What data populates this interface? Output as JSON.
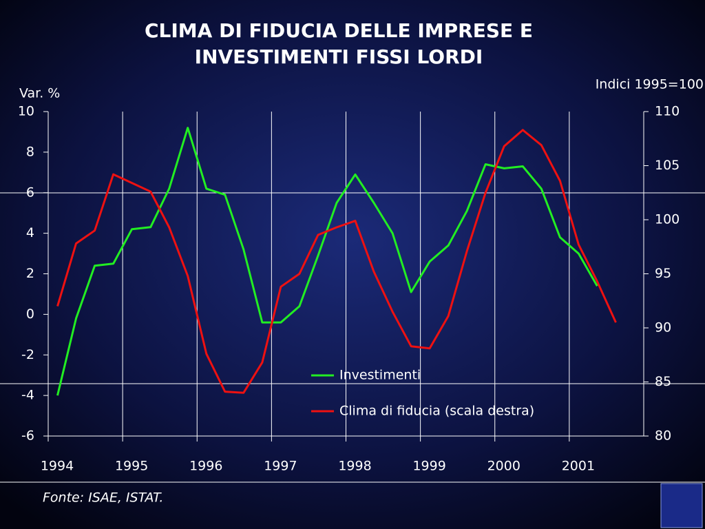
{
  "chart_data": {
    "type": "line",
    "title_lines": [
      "CLIMA DI FIDUCIA DELLE IMPRESE E",
      "INVESTIMENTI FISSI LORDI"
    ],
    "y_label": "Var. %",
    "y2_label": "Indici 1995=100",
    "source": "Fonte: ISAE, ISTAT.",
    "x": [
      1994.125,
      1994.375,
      1994.625,
      1994.875,
      1995.125,
      1995.375,
      1995.625,
      1995.875,
      1996.125,
      1996.375,
      1996.625,
      1996.875,
      1997.125,
      1997.375,
      1997.625,
      1997.875,
      1998.125,
      1998.375,
      1998.625,
      1998.875,
      1999.125,
      1999.375,
      1999.625,
      1999.875,
      2000.125,
      2000.375,
      2000.625,
      2000.875,
      2001.125,
      2001.375,
      2001.625
    ],
    "xlim": [
      1994,
      2002
    ],
    "xticks": [
      1994,
      1995,
      1996,
      1997,
      1998,
      1999,
      2000,
      2001
    ],
    "ylim": [
      -6,
      10
    ],
    "yticks": [
      10,
      8,
      6,
      4,
      2,
      0,
      -2,
      -4,
      -6
    ],
    "y2lim": [
      80,
      110
    ],
    "y2ticks": [
      110,
      105,
      100,
      95,
      90,
      85,
      80
    ],
    "grid": true,
    "series": [
      {
        "name": "Investimenti",
        "color": "#22ee22",
        "values": [
          -4.0,
          -0.2,
          2.4,
          2.5,
          4.2,
          4.3,
          6.2,
          9.2,
          6.2,
          5.9,
          3.2,
          -0.4,
          -0.4,
          0.4,
          2.9,
          5.5,
          6.9,
          5.5,
          4.0,
          1.1,
          2.6,
          3.4,
          5.1,
          7.4,
          7.2,
          7.3,
          6.2,
          3.8,
          3.0,
          1.4,
          null
        ]
      },
      {
        "name": "Clima di fiducia (scala destra)",
        "color": "#ee1111",
        "axis": "y2",
        "values": [
          92.0,
          97.8,
          99.0,
          104.2,
          103.4,
          102.6,
          99.3,
          94.8,
          87.6,
          84.1,
          84.0,
          86.8,
          93.8,
          95.0,
          98.6,
          99.3,
          99.9,
          95.2,
          91.5,
          88.3,
          88.1,
          91.1,
          97.1,
          102.5,
          106.8,
          108.3,
          106.9,
          103.6,
          97.7,
          94.3,
          90.5
        ]
      }
    ]
  }
}
